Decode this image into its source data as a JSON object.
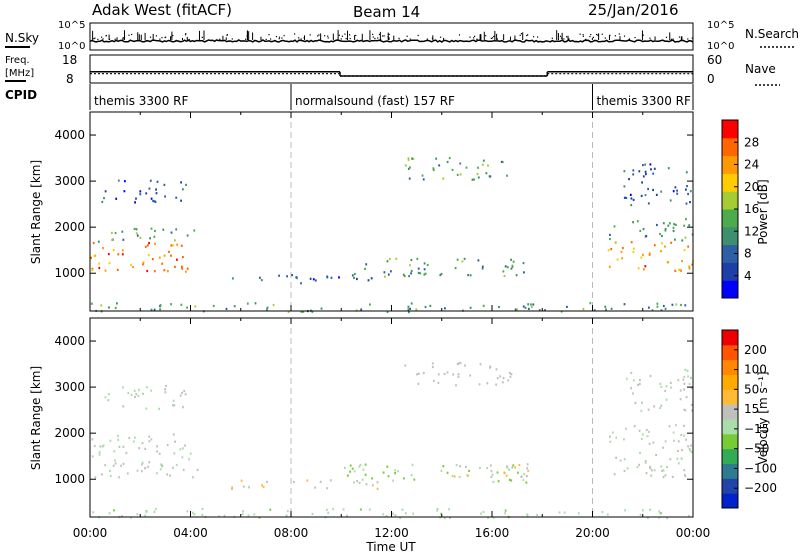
{
  "header": {
    "radar": "Adak West (fitACF)",
    "beam": "Beam 14",
    "date": "25/Jan/2016"
  },
  "noise_panel": {
    "left_label": "N.Sky",
    "right_label": "N.Search",
    "left_ticks": [
      "10^5",
      "10^0"
    ],
    "right_ticks": [
      "10^5",
      "10^0"
    ],
    "left_series": "N.Sky",
    "right_series": "N.Search"
  },
  "freq_panel": {
    "left_label_1": "Freq.",
    "left_label_2": "[MHz]",
    "right_label": "Nave",
    "left_ticks": [
      "18",
      "8"
    ],
    "right_ticks": [
      "60",
      "0"
    ],
    "freq_mhz": [
      {
        "t0": 0.0,
        "t1": 9.95,
        "v": 12.0
      },
      {
        "t0": 9.95,
        "t1": 18.2,
        "v": 10.5
      },
      {
        "t0": 18.2,
        "t1": 24.0,
        "v": 12.0
      }
    ],
    "nave": [
      {
        "t0": 0.0,
        "t1": 9.95,
        "v": 20
      },
      {
        "t0": 9.95,
        "t1": 18.2,
        "v": 15
      },
      {
        "t0": 18.2,
        "t1": 24.0,
        "v": 20
      }
    ]
  },
  "cpid_panel": {
    "label": "CPID",
    "segments": [
      {
        "label": "themis 3300 RF",
        "t0": 0.0,
        "t1": 8.0
      },
      {
        "label": "normalsound (fast) 157 RF",
        "t0": 8.0,
        "t1": 20.0
      },
      {
        "label": "themis 3300 RF",
        "t0": 20.0,
        "t1": 24.0
      }
    ]
  },
  "colors": {
    "power_scale": [
      "#0000ff",
      "#1f3fa8",
      "#2e5ea3",
      "#3e8f6e",
      "#4daa4d",
      "#a6cc33",
      "#ffcc00",
      "#ff9900",
      "#ff6600",
      "#ff0000"
    ],
    "velocity_scale": [
      "#0022cc",
      "#2244aa",
      "#2e7a8e",
      "#33aa55",
      "#77cc33",
      "#aaddaa",
      "#c0c0bc",
      "#ffbb33",
      "#ffaa00",
      "#ff8800",
      "#ff5500",
      "#ee0000"
    ]
  },
  "chart_data": [
    {
      "type": "heatmap",
      "name": "Power",
      "xlabel": "",
      "ylabel": "Slant Range [km]",
      "xlim": [
        0,
        24
      ],
      "ylim": [
        180,
        4500
      ],
      "yticks": [
        "1000",
        "2000",
        "3000",
        "4000"
      ],
      "colorbar_label": "Power [dB]",
      "colorbar_ticks": [
        "4",
        "8",
        "12",
        "16",
        "20",
        "24",
        "28"
      ],
      "colorbar_range": [
        0,
        32
      ],
      "regions": [
        {
          "t0": 0.0,
          "t1": 4.3,
          "r0": 1050,
          "r1": 1700,
          "value": 26
        },
        {
          "t0": 0.0,
          "t1": 4.3,
          "r0": 1700,
          "r1": 2000,
          "value": 14
        },
        {
          "t0": 0.4,
          "t1": 3.8,
          "r0": 2550,
          "r1": 3050,
          "value": 6
        },
        {
          "t0": 5.6,
          "t1": 11.5,
          "r0": 800,
          "r1": 1000,
          "value": 7
        },
        {
          "t0": 10.0,
          "t1": 17.5,
          "r0": 950,
          "r1": 1350,
          "value": 12
        },
        {
          "t0": 12.5,
          "t1": 16.8,
          "r0": 3050,
          "r1": 3550,
          "value": 14
        },
        {
          "t0": 20.6,
          "t1": 24.0,
          "r0": 1050,
          "r1": 1700,
          "value": 24
        },
        {
          "t0": 20.6,
          "t1": 24.0,
          "r0": 1700,
          "r1": 2200,
          "value": 12
        },
        {
          "t0": 21.2,
          "t1": 24.0,
          "r0": 2500,
          "r1": 3400,
          "value": 7
        },
        {
          "t0": 0.0,
          "t1": 24.0,
          "r0": 180,
          "r1": 380,
          "value": 12
        }
      ]
    },
    {
      "type": "heatmap",
      "name": "Velocity",
      "xlabel": "Time UT",
      "ylabel": "Slant Range [km]",
      "xlim": [
        0,
        24
      ],
      "ylim": [
        180,
        4500
      ],
      "xticks": [
        "00:00",
        "04:00",
        "08:00",
        "12:00",
        "16:00",
        "20:00",
        "00:00"
      ],
      "yticks": [
        "1000",
        "2000",
        "3000",
        "4000"
      ],
      "colorbar_label": "Velocity [m s⁻¹]",
      "colorbar_ticks": [
        "200",
        "100",
        "50",
        "15",
        "−15",
        "−50",
        "−100",
        "−200"
      ],
      "colorbar_range": [
        -250,
        250
      ],
      "regions": [
        {
          "t0": 0.0,
          "t1": 4.3,
          "r0": 1050,
          "r1": 1700,
          "value": 0
        },
        {
          "t0": 0.0,
          "t1": 4.3,
          "r0": 1700,
          "r1": 2000,
          "value": 0
        },
        {
          "t0": 0.4,
          "t1": 3.8,
          "r0": 2550,
          "r1": 3050,
          "value": 0
        },
        {
          "t0": 5.6,
          "t1": 11.5,
          "r0": 800,
          "r1": 1000,
          "value": 40
        },
        {
          "t0": 10.0,
          "t1": 17.5,
          "r0": 950,
          "r1": 1350,
          "value": -45
        },
        {
          "t0": 14.0,
          "t1": 17.5,
          "r0": 1050,
          "r1": 1350,
          "value": 45
        },
        {
          "t0": 12.5,
          "t1": 16.8,
          "r0": 3050,
          "r1": 3550,
          "value": 20
        },
        {
          "t0": 20.6,
          "t1": 24.0,
          "r0": 1050,
          "r1": 1700,
          "value": 0
        },
        {
          "t0": 20.6,
          "t1": 24.0,
          "r0": 1700,
          "r1": 2200,
          "value": 0
        },
        {
          "t0": 21.2,
          "t1": 24.0,
          "r0": 2500,
          "r1": 3400,
          "value": 0
        },
        {
          "t0": 0.0,
          "t1": 24.0,
          "r0": 180,
          "r1": 380,
          "value": -30
        }
      ]
    }
  ]
}
